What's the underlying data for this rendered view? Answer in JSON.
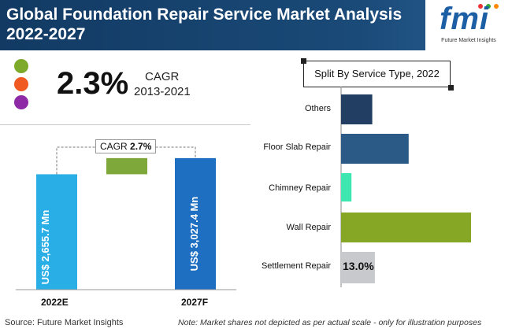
{
  "header": {
    "title": "Global Foundation Repair Service Market Analysis 2022-2027",
    "logo_text": "fmi",
    "logo_sub": "Future Market Insights"
  },
  "colors": {
    "header_bg": "#123a63",
    "dot_green": "#7daa2a",
    "dot_orange": "#f05a22",
    "dot_purple": "#8e2aa6",
    "bar_blue_light": "#29aee6",
    "bar_blue_dark": "#1e6fc2",
    "bar_green": "#7ea93a"
  },
  "cagr_panel": {
    "value": "2.3%",
    "label": "CAGR",
    "years": "2013-2021"
  },
  "chart_data": [
    {
      "type": "bar",
      "categories": [
        "2022E",
        "2027F"
      ],
      "values": [
        2655.7,
        3027.4
      ],
      "value_labels": [
        "US$ 2,655.7 Mn",
        "US$ 3,027.4 Mn"
      ],
      "increment": 371.7,
      "cagr_label": "CAGR",
      "cagr_value": "2.7%",
      "title": "",
      "xlabel": "",
      "ylabel": ""
    },
    {
      "type": "bar",
      "orientation": "horizontal",
      "title": "Split By Service Type, 2022",
      "categories": [
        "Others",
        "Floor Slab Repair",
        "Chimney Repair",
        "Wall Repair",
        "Settlement Repair"
      ],
      "values": [
        6,
        13,
        2,
        25,
        6.5
      ],
      "colors": [
        "#223f63",
        "#2a5a85",
        "#3ee6b0",
        "#86a726",
        "#c7c9cc"
      ],
      "data_labels": [
        "",
        "",
        "",
        "",
        "13.0%"
      ],
      "xlabel": "",
      "ylabel": ""
    }
  ],
  "footer": {
    "source": "Source: Future Market Insights",
    "note": "Note: Market shares not depicted as per actual scale - only for illustration purposes"
  }
}
